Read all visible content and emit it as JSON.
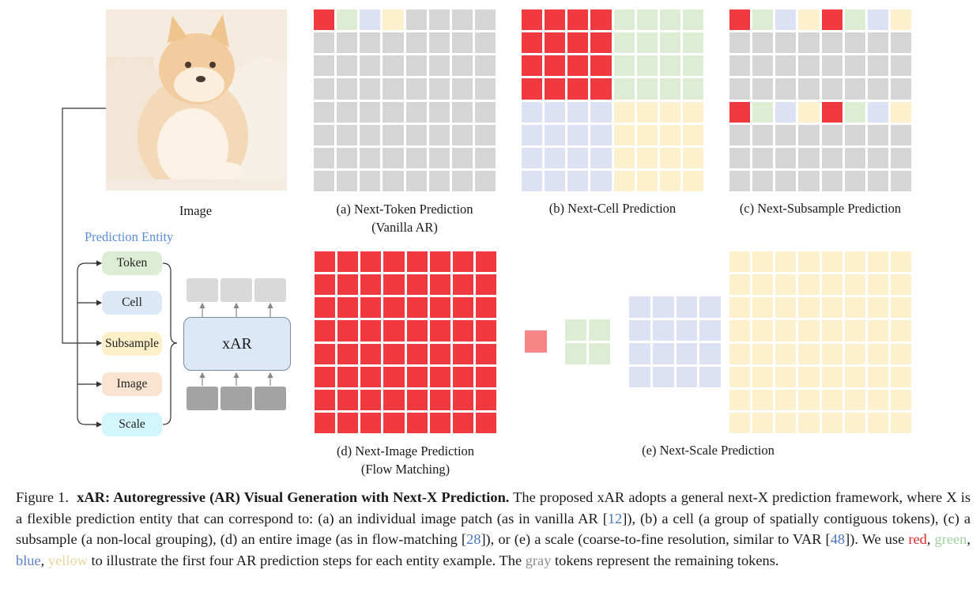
{
  "image_label": "Image",
  "entity_title": "Prediction Entity",
  "entities": [
    {
      "label": "Token",
      "color": "#dcedd3"
    },
    {
      "label": "Cell",
      "color": "#dce8f6"
    },
    {
      "label": "Subsample",
      "color": "#fdf0c9"
    },
    {
      "label": "Image",
      "color": "#fbe3d2"
    },
    {
      "label": "Scale",
      "color": "#d2f6fb"
    }
  ],
  "model_label": "xAR",
  "panels": {
    "a_line1": "(a) Next-Token Prediction",
    "a_line2": "(Vanilla AR)",
    "b": "(b) Next-Cell Prediction",
    "c": "(c) Next-Subsample Prediction",
    "d_line1": "(d) Next-Image Prediction",
    "d_line2": "(Flow Matching)",
    "e": "(e) Next-Scale Prediction"
  },
  "colors": {
    "red": "#f03a3f",
    "green": "#dcedd3",
    "blue": "#dce2f3",
    "yellow": "#fdf0cc",
    "gray": "#d5d5d5",
    "dark_gray": "#a3a3a3",
    "light_gray": "#d9d9d9"
  },
  "caption": {
    "fig": "Figure 1.",
    "title": "xAR: Autoregressive (AR) Visual Generation with Next-X Prediction.",
    "p1": " The proposed xAR adopts a general next-X prediction framework, where X is a flexible prediction entity that can correspond to: (a) an individual image patch (as in vanilla AR [",
    "r1": "12",
    "p2": "]), (b) a cell (a group of spatially contiguous tokens), (c) a subsample (a non-local grouping), (d) an entire image (as in flow-matching [",
    "r2": "28",
    "p3": "]), or (e) a scale (coarse-to-fine resolution, similar to VAR [",
    "r3": "48",
    "p4": "]).  We use ",
    "w_red": "red",
    "s1": ", ",
    "w_green": "green",
    "s2": ", ",
    "w_blue": "blue",
    "s3": ", ",
    "w_yellow": "yellow",
    "p5": " to illustrate the first four AR prediction steps for each entity example. The ",
    "w_gray": "gray",
    "p6": " tokens represent the remaining tokens."
  }
}
